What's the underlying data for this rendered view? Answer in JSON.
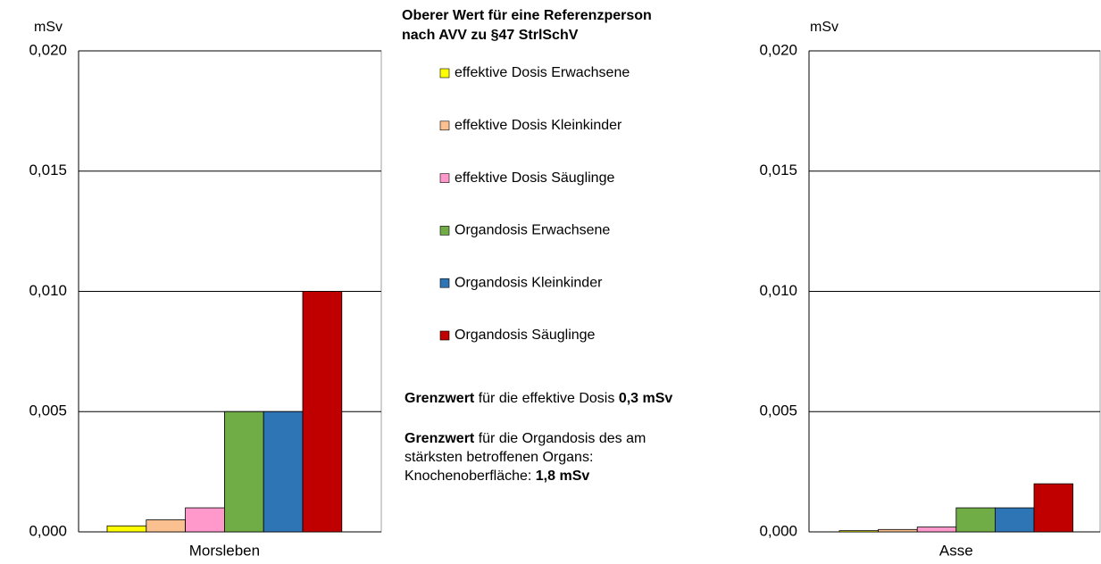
{
  "chart_data": [
    {
      "type": "bar",
      "unit_label": "mSv",
      "categories": [
        "Morsleben"
      ],
      "ylim": [
        0,
        0.02
      ],
      "yticks": [
        {
          "value": 0,
          "label": "0,000"
        },
        {
          "value": 0.005,
          "label": "0,005"
        },
        {
          "value": 0.01,
          "label": "0,010"
        },
        {
          "value": 0.015,
          "label": "0,015"
        },
        {
          "value": 0.02,
          "label": "0,020"
        }
      ],
      "grid": true,
      "series": [
        {
          "name": "effektive Dosis Erwachsene",
          "color": "#ffff00",
          "values": [
            0.00025
          ]
        },
        {
          "name": "effektive Dosis Kleinkinder",
          "color": "#fac090",
          "values": [
            0.0005
          ]
        },
        {
          "name": "effektive Dosis Säuglinge",
          "color": "#ff99cc",
          "values": [
            0.001
          ]
        },
        {
          "name": "Organdosis Erwachsene",
          "color": "#70ad47",
          "values": [
            0.005
          ]
        },
        {
          "name": "Organdosis Kleinkinder",
          "color": "#2e75b6",
          "values": [
            0.005
          ]
        },
        {
          "name": "Organdosis Säuglinge",
          "color": "#c00000",
          "values": [
            0.01
          ]
        }
      ]
    },
    {
      "type": "bar",
      "unit_label": "mSv",
      "categories": [
        "Asse"
      ],
      "ylim": [
        0,
        0.02
      ],
      "yticks": [
        {
          "value": 0,
          "label": "0,000"
        },
        {
          "value": 0.005,
          "label": "0,005"
        },
        {
          "value": 0.01,
          "label": "0,010"
        },
        {
          "value": 0.015,
          "label": "0,015"
        },
        {
          "value": 0.02,
          "label": "0,020"
        }
      ],
      "grid": true,
      "series": [
        {
          "color": "#ffff00",
          "values": [
            5e-05
          ]
        },
        {
          "color": "#fac090",
          "values": [
            0.0001
          ]
        },
        {
          "color": "#ff99cc",
          "values": [
            0.0002
          ]
        },
        {
          "color": "#70ad47",
          "values": [
            0.001
          ]
        },
        {
          "color": "#2e75b6",
          "values": [
            0.001
          ]
        },
        {
          "color": "#c00000",
          "values": [
            0.002
          ]
        }
      ]
    }
  ],
  "legend_title": [
    "Oberer Wert für eine Referenzperson",
    "nach AVV zu §47 StrlSchV"
  ],
  "notes": [
    {
      "lines": [
        [
          {
            "text": "Grenzwert",
            "bold": true
          },
          {
            "text": " für die effektive Dosis "
          },
          {
            "text": "0,3 mSv",
            "bold": true
          }
        ]
      ]
    },
    {
      "lines": [
        [
          {
            "text": "Grenzwert",
            "bold": true
          },
          {
            "text": " für die Organdosis des am"
          }
        ],
        [
          {
            "text": "stärksten betroffenen Organs:"
          }
        ],
        [
          {
            "text": "Knochenoberfläche: "
          },
          {
            "text": "1,8 mSv",
            "bold": true
          }
        ]
      ]
    }
  ]
}
